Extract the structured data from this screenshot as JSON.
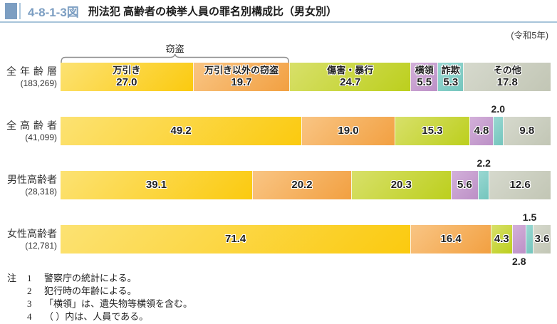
{
  "header": {
    "figure_number": "4-8-1-3図",
    "title": "刑法犯 高齢者の検挙人員の罪名別構成比（男女別）",
    "year_note": "(令和5年)"
  },
  "chart_data": {
    "type": "bar",
    "stacked": true,
    "orientation": "horizontal",
    "value_unit": "%",
    "xlim": [
      0,
      100
    ],
    "group_bracket": {
      "label": "窃盗",
      "series_span": [
        "万引き",
        "万引き以外の窃盗"
      ]
    },
    "series_names_shown_in_category": "全年齢層",
    "categories": [
      {
        "label": "全年齢層",
        "count": "(183,269)"
      },
      {
        "label": "全高齢者",
        "count": "(41,099)"
      },
      {
        "label": "男性高齢者",
        "count": "(28,318)"
      },
      {
        "label": "女性高齢者",
        "count": "(12,781)"
      }
    ],
    "series": [
      {
        "name": "万引き",
        "colors": [
          "#FCE273",
          "#FBCA0F"
        ],
        "values": [
          27.0,
          49.2,
          39.1,
          71.4
        ],
        "label_positions": [
          "in",
          "in",
          "in",
          "in"
        ]
      },
      {
        "name": "万引き以外の窃盗",
        "colors": [
          "#F9C584",
          "#F2A041"
        ],
        "values": [
          19.7,
          19.0,
          20.2,
          16.4
        ],
        "label_positions": [
          "in",
          "in",
          "in",
          "in"
        ]
      },
      {
        "name": "傷害・暴行",
        "colors": [
          "#D8E06A",
          "#BCCF1D"
        ],
        "values": [
          24.7,
          15.3,
          20.3,
          4.3
        ],
        "label_positions": [
          "in",
          "in",
          "in",
          "in"
        ]
      },
      {
        "name": "横領",
        "colors": [
          "#D3B0DA",
          "#BC90C6"
        ],
        "values": [
          5.5,
          4.8,
          5.6,
          2.8
        ],
        "label_positions": [
          "in",
          "in",
          "in",
          "below"
        ]
      },
      {
        "name": "詐欺",
        "colors": [
          "#9AD8D2",
          "#74C5BD"
        ],
        "values": [
          5.3,
          2.0,
          2.2,
          1.5
        ],
        "label_positions": [
          "in",
          "above",
          "above",
          "above"
        ]
      },
      {
        "name": "その他",
        "colors": [
          "#D6D9CD",
          "#C2C6B5"
        ],
        "values": [
          17.8,
          9.8,
          12.6,
          3.6
        ],
        "label_positions": [
          "in",
          "in",
          "in",
          "in"
        ]
      }
    ]
  },
  "notes": {
    "prefix": "注",
    "items": [
      {
        "num": "1",
        "text": "警察庁の統計による。"
      },
      {
        "num": "2",
        "text": "犯行時の年齢による。"
      },
      {
        "num": "3",
        "text": "「横領」は、遺失物等横領を含む。"
      },
      {
        "num": "4",
        "text": "（ ）内は、人員である。"
      }
    ]
  }
}
